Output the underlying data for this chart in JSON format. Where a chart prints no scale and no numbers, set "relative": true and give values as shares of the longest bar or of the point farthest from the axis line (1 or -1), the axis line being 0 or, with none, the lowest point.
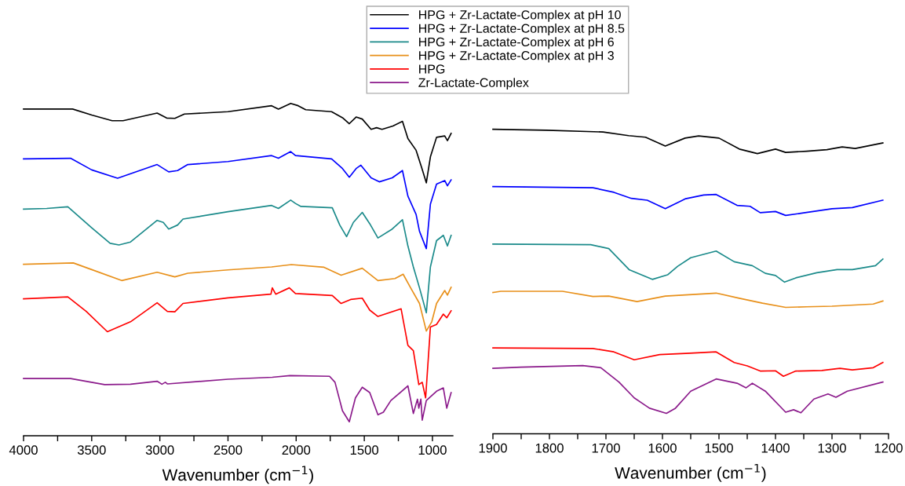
{
  "chart_data": [
    {
      "type": "line",
      "relative": true,
      "xlabel": "Wavenumber (cm$^{−1}$)",
      "xlim": [
        4000,
        850
      ],
      "xticks": [
        4000,
        {
          "value": 3750,
          "label": null
        },
        3500,
        {
          "value": 3250,
          "label": null
        },
        3000,
        {
          "value": 2750,
          "label": null
        },
        2500,
        {
          "value": 2250,
          "label": null
        },
        2000,
        {
          "value": 1750,
          "label": null
        },
        1500,
        {
          "value": 1250,
          "label": null
        },
        1000
      ],
      "tick_labels": "x",
      "grid": false,
      "legend": "top",
      "marker": "none",
      "line_style": "solid",
      "series": [
        {
          "name": "HPG + Zr-Lactate-Complex at pH 10",
          "color": "#000000",
          "x": [
            4000,
            3640,
            3500,
            3350,
            3270,
            3020,
            2950,
            2890,
            2820,
            2500,
            2180,
            2130,
            2040,
            1985,
            1930,
            1740,
            1660,
            1610,
            1560,
            1515,
            1450,
            1410,
            1370,
            1290,
            1220,
            1180,
            1120,
            1080,
            1045,
            1015,
            970,
            910,
            890,
            863
          ],
          "values": [
            0.983,
            0.983,
            0.965,
            0.948,
            0.948,
            0.971,
            0.956,
            0.955,
            0.968,
            0.975,
            0.993,
            0.983,
            1.0,
            0.993,
            0.981,
            0.975,
            0.957,
            0.939,
            0.959,
            0.953,
            0.922,
            0.927,
            0.922,
            0.932,
            0.946,
            0.894,
            0.859,
            0.808,
            0.761,
            0.839,
            0.898,
            0.902,
            0.888,
            0.91
          ]
        },
        {
          "name": "HPG + Zr-Lactate-Complex at pH 8.5",
          "color": "#0000ff",
          "x": [
            4000,
            3655,
            3500,
            3310,
            3020,
            2935,
            2870,
            2795,
            2500,
            2180,
            2130,
            2040,
            2005,
            1740,
            1660,
            1610,
            1560,
            1525,
            1450,
            1390,
            1295,
            1220,
            1180,
            1120,
            1095,
            1045,
            1015,
            970,
            910,
            890,
            863
          ],
          "values": [
            0.833,
            0.835,
            0.8,
            0.775,
            0.816,
            0.794,
            0.798,
            0.816,
            0.825,
            0.843,
            0.835,
            0.855,
            0.843,
            0.833,
            0.804,
            0.778,
            0.804,
            0.814,
            0.776,
            0.764,
            0.776,
            0.798,
            0.721,
            0.666,
            0.615,
            0.563,
            0.697,
            0.757,
            0.768,
            0.752,
            0.77
          ]
        },
        {
          "name": "HPG + Zr-Lactate-Complex at pH 6",
          "color": "#1a8a8a",
          "x": [
            4000,
            3830,
            3675,
            3500,
            3365,
            3300,
            3215,
            3020,
            2975,
            2935,
            2870,
            2830,
            2500,
            2180,
            2130,
            2040,
            2005,
            1965,
            1735,
            1680,
            1630,
            1580,
            1515,
            1460,
            1400,
            1295,
            1220,
            1180,
            1140,
            1095,
            1045,
            1015,
            970,
            920,
            890,
            863
          ],
          "values": [
            0.682,
            0.684,
            0.689,
            0.626,
            0.579,
            0.574,
            0.583,
            0.648,
            0.642,
            0.622,
            0.634,
            0.652,
            0.674,
            0.693,
            0.684,
            0.709,
            0.699,
            0.69,
            0.686,
            0.634,
            0.599,
            0.642,
            0.672,
            0.638,
            0.595,
            0.622,
            0.65,
            0.571,
            0.508,
            0.445,
            0.37,
            0.508,
            0.587,
            0.603,
            0.571,
            0.603
          ]
        },
        {
          "name": "HPG + Zr-Lactate-Complex at pH 3",
          "color": "#e8901a",
          "x": [
            4000,
            3635,
            3500,
            3280,
            3020,
            2890,
            2795,
            2500,
            2180,
            2035,
            1795,
            1670,
            1515,
            1400,
            1275,
            1215,
            1160,
            1095,
            1045,
            1005,
            970,
            910,
            890,
            863
          ],
          "values": [
            0.516,
            0.52,
            0.5,
            0.467,
            0.492,
            0.478,
            0.489,
            0.499,
            0.508,
            0.515,
            0.507,
            0.483,
            0.504,
            0.467,
            0.473,
            0.486,
            0.445,
            0.398,
            0.315,
            0.343,
            0.398,
            0.437,
            0.423,
            0.447
          ]
        },
        {
          "name": "HPG",
          "color": "#ff0000",
          "x": [
            4000,
            3675,
            3540,
            3385,
            3215,
            3020,
            2945,
            2890,
            2830,
            2500,
            2185,
            2175,
            2150,
            2050,
            2005,
            1735,
            1670,
            1600,
            1515,
            1460,
            1400,
            1230,
            1180,
            1140,
            1100,
            1075,
            1050,
            1015,
            970,
            920,
            895,
            863
          ],
          "values": [
            0.412,
            0.418,
            0.374,
            0.313,
            0.343,
            0.4,
            0.374,
            0.373,
            0.398,
            0.415,
            0.426,
            0.445,
            0.426,
            0.445,
            0.428,
            0.422,
            0.398,
            0.41,
            0.414,
            0.378,
            0.359,
            0.382,
            0.272,
            0.256,
            0.154,
            0.161,
            0.114,
            0.327,
            0.335,
            0.366,
            0.355,
            0.376
          ]
        },
        {
          "name": "Zr-Lactate-Complex",
          "color": "#8b1a8b",
          "x": [
            4000,
            3655,
            3405,
            3215,
            3020,
            2985,
            2960,
            2945,
            2500,
            2175,
            2045,
            1755,
            1715,
            1660,
            1610,
            1565,
            1515,
            1460,
            1400,
            1360,
            1305,
            1180,
            1140,
            1110,
            1100,
            1085,
            1075,
            1045,
            970,
            920,
            895,
            863
          ],
          "values": [
            0.172,
            0.172,
            0.154,
            0.155,
            0.164,
            0.155,
            0.161,
            0.156,
            0.17,
            0.176,
            0.181,
            0.179,
            0.161,
            0.075,
            0.042,
            0.114,
            0.146,
            0.13,
            0.063,
            0.071,
            0.106,
            0.15,
            0.067,
            0.11,
            0.083,
            0.11,
            0.047,
            0.106,
            0.134,
            0.144,
            0.083,
            0.13
          ]
        }
      ]
    },
    {
      "type": "line",
      "relative": true,
      "xlabel": "Wavenumber (cm$^{−1}$)",
      "xlim": [
        1900,
        1200
      ],
      "xticks": [
        1900,
        {
          "value": 1850,
          "label": null
        },
        1800,
        {
          "value": 1750,
          "label": null
        },
        1700,
        {
          "value": 1650,
          "label": null
        },
        1600,
        {
          "value": 1550,
          "label": null
        },
        1500,
        {
          "value": 1450,
          "label": null
        },
        1400,
        {
          "value": 1350,
          "label": null
        },
        1300,
        {
          "value": 1250,
          "label": null
        },
        1200
      ],
      "tick_labels": "x",
      "grid": false,
      "marker": "none",
      "line_style": "solid",
      "series": [
        {
          "color": "#000000",
          "x": [
            1900,
            1805,
            1705,
            1660,
            1630,
            1595,
            1560,
            1536,
            1500,
            1464,
            1432,
            1400,
            1382,
            1345,
            1309,
            1282,
            1259,
            1210
          ],
          "values": [
            1.0,
            0.997,
            0.991,
            0.979,
            0.974,
            0.945,
            0.971,
            0.978,
            0.971,
            0.935,
            0.92,
            0.935,
            0.924,
            0.928,
            0.933,
            0.942,
            0.937,
            0.955
          ]
        },
        {
          "color": "#0000ff",
          "x": [
            1900,
            1723,
            1686,
            1655,
            1627,
            1595,
            1559,
            1527,
            1505,
            1468,
            1445,
            1427,
            1400,
            1382,
            1355,
            1300,
            1264,
            1210
          ],
          "values": [
            0.812,
            0.808,
            0.793,
            0.773,
            0.767,
            0.739,
            0.772,
            0.784,
            0.786,
            0.75,
            0.747,
            0.726,
            0.73,
            0.717,
            0.724,
            0.739,
            0.743,
            0.767
          ]
        },
        {
          "color": "#1a8a8a",
          "x": [
            1900,
            1727,
            1695,
            1659,
            1618,
            1591,
            1573,
            1550,
            1505,
            1473,
            1441,
            1418,
            1400,
            1384,
            1364,
            1327,
            1291,
            1264,
            1223,
            1210
          ],
          "values": [
            0.623,
            0.621,
            0.608,
            0.539,
            0.507,
            0.522,
            0.55,
            0.578,
            0.6,
            0.565,
            0.552,
            0.527,
            0.52,
            0.498,
            0.512,
            0.529,
            0.539,
            0.539,
            0.552,
            0.574
          ]
        },
        {
          "color": "#e8901a",
          "x": [
            1900,
            1886,
            1777,
            1723,
            1695,
            1645,
            1595,
            1559,
            1505,
            1464,
            1423,
            1382,
            1345,
            1300,
            1227,
            1210
          ],
          "values": [
            0.464,
            0.468,
            0.468,
            0.451,
            0.452,
            0.434,
            0.452,
            0.456,
            0.462,
            0.445,
            0.429,
            0.415,
            0.417,
            0.419,
            0.426,
            0.436
          ]
        },
        {
          "color": "#ff0000",
          "x": [
            1900,
            1723,
            1686,
            1650,
            1605,
            1559,
            1505,
            1473,
            1450,
            1427,
            1400,
            1386,
            1364,
            1318,
            1286,
            1264,
            1227,
            1210
          ],
          "values": [
            0.282,
            0.28,
            0.269,
            0.243,
            0.26,
            0.264,
            0.269,
            0.234,
            0.223,
            0.206,
            0.207,
            0.189,
            0.206,
            0.208,
            0.215,
            0.21,
            0.217,
            0.234
          ]
        },
        {
          "color": "#8b1a8b",
          "x": [
            1900,
            1850,
            1741,
            1709,
            1677,
            1650,
            1623,
            1593,
            1577,
            1550,
            1505,
            1468,
            1452,
            1441,
            1418,
            1382,
            1368,
            1355,
            1332,
            1307,
            1293,
            1273,
            1210
          ],
          "values": [
            0.215,
            0.219,
            0.224,
            0.217,
            0.17,
            0.118,
            0.084,
            0.067,
            0.084,
            0.14,
            0.18,
            0.166,
            0.151,
            0.166,
            0.14,
            0.071,
            0.079,
            0.069,
            0.114,
            0.131,
            0.12,
            0.14,
            0.17
          ]
        }
      ]
    }
  ]
}
